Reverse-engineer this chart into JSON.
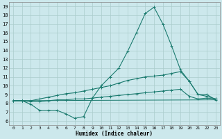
{
  "background_color": "#cce8ec",
  "grid_color": "#aacccc",
  "line_color": "#1a7a6e",
  "xlim": [
    -0.5,
    23.5
  ],
  "ylim": [
    5.5,
    19.5
  ],
  "xticks": [
    0,
    1,
    2,
    3,
    4,
    5,
    6,
    7,
    8,
    9,
    10,
    11,
    12,
    13,
    14,
    15,
    16,
    17,
    18,
    19,
    20,
    21,
    22,
    23
  ],
  "yticks": [
    6,
    7,
    8,
    9,
    10,
    11,
    12,
    13,
    14,
    15,
    16,
    17,
    18,
    19
  ],
  "xlabel": "Humidex (Indice chaleur)",
  "line1_x": [
    0,
    1,
    2,
    3,
    4,
    5,
    6,
    7,
    8,
    9,
    10,
    11,
    12,
    13,
    14,
    15,
    16,
    17,
    18,
    19,
    20,
    21,
    22,
    23
  ],
  "line1_y": [
    8.3,
    8.3,
    7.9,
    7.2,
    7.2,
    7.2,
    6.8,
    6.3,
    6.5,
    8.6,
    10.0,
    11.0,
    12.0,
    13.9,
    16.0,
    18.2,
    18.9,
    17.0,
    14.5,
    11.8,
    10.5,
    9.0,
    9.0,
    8.4
  ],
  "line2_x": [
    0,
    1,
    2,
    3,
    4,
    5,
    6,
    7,
    8,
    9,
    10,
    11,
    12,
    13,
    14,
    15,
    16,
    17,
    18,
    19,
    20,
    21,
    22,
    23
  ],
  "line2_y": [
    8.3,
    8.3,
    8.3,
    8.5,
    8.7,
    8.9,
    9.1,
    9.2,
    9.4,
    9.6,
    9.8,
    10.0,
    10.3,
    10.6,
    10.8,
    11.0,
    11.1,
    11.2,
    11.4,
    11.6,
    10.5,
    9.0,
    8.8,
    8.5
  ],
  "line3_x": [
    0,
    1,
    2,
    3,
    4,
    5,
    6,
    7,
    8,
    9,
    10,
    11,
    12,
    13,
    14,
    15,
    16,
    17,
    18,
    19,
    20,
    21,
    22,
    23
  ],
  "line3_y": [
    8.3,
    8.3,
    8.2,
    8.2,
    8.3,
    8.4,
    8.4,
    8.5,
    8.5,
    8.6,
    8.7,
    8.8,
    8.9,
    9.0,
    9.1,
    9.2,
    9.3,
    9.4,
    9.5,
    9.6,
    8.8,
    8.5,
    8.6,
    8.5
  ],
  "line4_x": [
    0,
    23
  ],
  "line4_y": [
    8.3,
    8.4
  ]
}
